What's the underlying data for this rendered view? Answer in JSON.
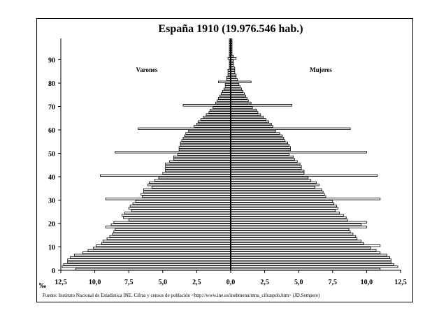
{
  "chart_data": {
    "type": "bar",
    "title": "España 1910 (19.976.546 hab.)",
    "left_label": "Varones",
    "right_label": "Mujeres",
    "unit_label": "‰",
    "source": "Fuente: Instituto Nacional de Estadística INE. Cifras y censos de población <http://www.ine.es/inebmenu/mnu_cifraspob.htm> (JD.Sempere)",
    "x_ticks": [
      "12,5",
      "10,0",
      "7,5",
      "5,0",
      "2,5",
      "0,0",
      "2,5",
      "5,0",
      "7,5",
      "10,0",
      "12,5"
    ],
    "y_ticks": [
      "0",
      "10",
      "20",
      "30",
      "40",
      "50",
      "60",
      "70",
      "80",
      "90"
    ],
    "xlim": [
      -12.5,
      12.5
    ],
    "ylim": [
      0,
      99
    ],
    "categories": [
      0,
      1,
      2,
      3,
      4,
      5,
      6,
      7,
      8,
      9,
      10,
      11,
      12,
      13,
      14,
      15,
      16,
      17,
      18,
      19,
      20,
      21,
      22,
      23,
      24,
      25,
      26,
      27,
      28,
      29,
      30,
      31,
      32,
      33,
      34,
      35,
      36,
      37,
      38,
      39,
      40,
      41,
      42,
      43,
      44,
      45,
      46,
      47,
      48,
      49,
      50,
      51,
      52,
      53,
      54,
      55,
      56,
      57,
      58,
      59,
      60,
      61,
      62,
      63,
      64,
      65,
      66,
      67,
      68,
      69,
      70,
      71,
      72,
      73,
      74,
      75,
      76,
      77,
      78,
      79,
      80,
      81,
      82,
      83,
      84,
      85,
      86,
      87,
      88,
      89,
      90,
      91,
      92,
      93,
      94,
      95,
      96,
      97,
      98
    ],
    "series": [
      {
        "name": "Varones",
        "values": [
          11.4,
          12.4,
          12.3,
          12.0,
          12.0,
          11.8,
          11.5,
          10.9,
          10.5,
          10.1,
          9.9,
          9.5,
          9.4,
          9.1,
          8.9,
          8.7,
          8.6,
          8.5,
          9.2,
          8.8,
          8.6,
          7.5,
          7.9,
          8.0,
          7.8,
          7.3,
          7.5,
          7.4,
          7.2,
          7.0,
          9.2,
          6.5,
          6.6,
          6.4,
          6.4,
          5.8,
          6.1,
          6.0,
          5.6,
          5.3,
          9.6,
          5.0,
          4.8,
          4.8,
          4.8,
          4.8,
          4.5,
          4.2,
          4.2,
          3.9,
          8.5,
          3.8,
          3.8,
          3.7,
          3.7,
          3.6,
          3.5,
          3.4,
          3.3,
          3.1,
          6.8,
          2.7,
          2.5,
          2.4,
          2.2,
          2.0,
          1.8,
          1.6,
          1.5,
          1.3,
          3.5,
          1.1,
          1.0,
          0.9,
          0.8,
          0.7,
          0.6,
          0.5,
          0.4,
          0.4,
          0.9,
          0.3,
          0.3,
          0.2,
          0.2,
          0.2,
          0.1,
          0.1,
          0.1,
          0.1,
          0.2,
          0.1,
          0.1,
          0.1,
          0.1,
          0.1,
          0.1,
          0.1,
          0.1
        ]
      },
      {
        "name": "Mujeres",
        "values": [
          11.0,
          12.3,
          12.0,
          11.8,
          11.8,
          11.7,
          11.5,
          11.0,
          10.7,
          10.3,
          11.0,
          9.8,
          9.6,
          9.3,
          9.2,
          9.0,
          8.8,
          8.7,
          10.0,
          9.6,
          10.0,
          8.6,
          8.5,
          8.3,
          8.0,
          7.7,
          7.9,
          7.8,
          7.6,
          7.5,
          11.0,
          7.0,
          6.9,
          6.8,
          6.7,
          6.2,
          6.5,
          6.3,
          5.9,
          5.7,
          10.8,
          5.4,
          5.4,
          5.2,
          5.2,
          5.1,
          4.9,
          4.7,
          4.6,
          4.3,
          10.0,
          4.4,
          4.4,
          4.3,
          4.2,
          4.0,
          3.9,
          3.8,
          3.6,
          3.3,
          8.8,
          3.1,
          3.0,
          2.8,
          2.6,
          2.4,
          2.2,
          2.0,
          1.9,
          1.6,
          4.5,
          1.5,
          1.3,
          1.2,
          1.1,
          1.0,
          0.9,
          0.8,
          0.7,
          0.6,
          1.5,
          0.5,
          0.4,
          0.4,
          0.3,
          0.3,
          0.3,
          0.2,
          0.2,
          0.2,
          0.4,
          0.2,
          0.1,
          0.1,
          0.1,
          0.1,
          0.1,
          0.1,
          0.1
        ]
      }
    ]
  }
}
